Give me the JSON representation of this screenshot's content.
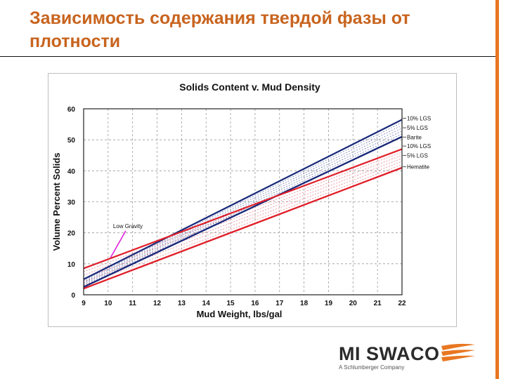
{
  "slide": {
    "title": "Зависимость содержания твердой фазы от плотности"
  },
  "colors": {
    "accent": "#e87722",
    "title": "#c8641e",
    "navy": "#1a2a7a",
    "red": "#e0202a",
    "hatch_blue": "#4a5aa0",
    "hatch_red": "#e06070",
    "pointer": "#e020e0"
  },
  "chart_data": {
    "type": "line",
    "title": "Solids Content v. Mud Density",
    "xlabel": "Mud Weight, lbs/gal",
    "ylabel": "Volume Percent Solids",
    "xlim": [
      9,
      22
    ],
    "ylim": [
      0,
      60
    ],
    "xticks": [
      9,
      10,
      11,
      12,
      13,
      14,
      15,
      16,
      17,
      18,
      19,
      20,
      21,
      22
    ],
    "yticks": [
      0,
      10,
      20,
      30,
      40,
      50,
      60
    ],
    "grid": true,
    "legend": "right",
    "series": [
      {
        "name": "10% LGS",
        "color": "navy",
        "x": [
          9,
          22
        ],
        "y": [
          5,
          56.5
        ]
      },
      {
        "name": "5% LGS",
        "color": "navy",
        "x": [
          9,
          22
        ],
        "y": [
          2.5,
          51
        ]
      },
      {
        "name": "Barite",
        "color": "navy",
        "x": [
          9,
          22
        ],
        "y": [
          2.5,
          51
        ]
      },
      {
        "name": "10% LGS",
        "color": "red",
        "x": [
          9,
          22
        ],
        "y": [
          8.5,
          47
        ]
      },
      {
        "name": "5% LGS",
        "color": "red",
        "x": [
          9,
          22
        ],
        "y": [
          2,
          41
        ]
      },
      {
        "name": "Hematite",
        "color": "red",
        "x": [
          9,
          22
        ],
        "y": [
          2,
          41
        ]
      }
    ],
    "legend_entries": [
      "10% LGS",
      "5% LGS",
      "Barite",
      "10% LGS",
      "5% LGS",
      "Hematite"
    ],
    "annotations": [
      {
        "text": "Low Gravity",
        "x": 10.2,
        "y": 21.5,
        "arrow_to": [
          10.1,
          12
        ]
      }
    ]
  },
  "logo": {
    "name": "MI SWACO",
    "subtitle": "A Schlumberger Company"
  }
}
